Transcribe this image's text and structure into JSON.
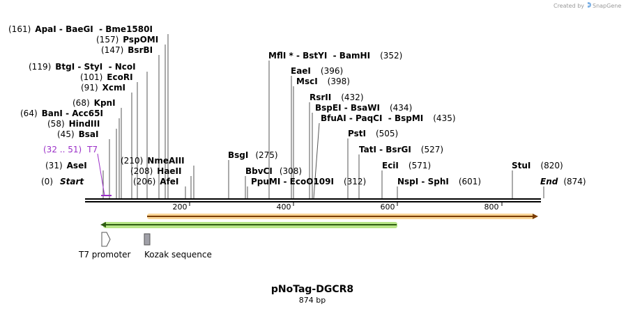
{
  "credit": "Created by",
  "brand": "SnapGene",
  "brand_icon": "snapgene-logo-icon",
  "map": {
    "title": "pNoTag-DGCR8",
    "length_label": "874 bp",
    "length": 874,
    "start_num": "(0)",
    "start_label": "Start",
    "end_label": "End",
    "end_num": "(874)",
    "ticks": [
      "200",
      "400",
      "600",
      "800"
    ],
    "colors": {
      "backbone": "#000000",
      "primer": "#9b30c8",
      "orange": "#f5a623",
      "green": "#66cc33",
      "kozak": "#a0a0a8"
    }
  },
  "sites": [
    {
      "id": "apai",
      "num": "(161)",
      "enz": "ApaI",
      "rest": " - BaeGI  - Bme1580I"
    },
    {
      "id": "pspomi",
      "num": "(157)",
      "enz": "PspOMI",
      "rest": ""
    },
    {
      "id": "bsrbi",
      "num": "(147)",
      "enz": "BsrBI",
      "rest": ""
    },
    {
      "id": "btgi",
      "num": "(119)",
      "enz": "BtgI",
      "rest": " - StyI  - NcoI"
    },
    {
      "id": "ecori",
      "num": "(101)",
      "enz": "EcoRI",
      "rest": ""
    },
    {
      "id": "xcmi",
      "num": "(91)",
      "enz": "XcmI",
      "rest": ""
    },
    {
      "id": "kpni",
      "num": "(68)",
      "enz": "KpnI",
      "rest": ""
    },
    {
      "id": "bani",
      "num": "(64)",
      "enz": "BanI",
      "rest": " - Acc65I"
    },
    {
      "id": "hindiii",
      "num": "(58)",
      "enz": "HindIII",
      "rest": ""
    },
    {
      "id": "bsai",
      "num": "(45)",
      "enz": "BsaI",
      "rest": ""
    },
    {
      "id": "asei",
      "num": "(31)",
      "enz": "AseI",
      "rest": ""
    },
    {
      "id": "nmeaiii",
      "num": "(210)",
      "enz": "NmeAIII",
      "rest": ""
    },
    {
      "id": "haeii",
      "num": "(208)",
      "enz": "HaeII",
      "rest": ""
    },
    {
      "id": "afei",
      "num": "(206)",
      "enz": "AfeI",
      "rest": ""
    },
    {
      "id": "bsgi",
      "num": "(275)",
      "enz": "BsgI",
      "rest": ""
    },
    {
      "id": "bbvci",
      "num": "(308)",
      "enz": "BbvCI",
      "rest": ""
    },
    {
      "id": "ppumi",
      "num": "(312)",
      "enz": "PpuMI",
      "rest": " - EcoO109I"
    },
    {
      "id": "mfli",
      "num": "(352)",
      "enz": "MflI *",
      "rest": " - BstYI  - BamHI"
    },
    {
      "id": "eaei",
      "num": "(396)",
      "enz": "EaeI",
      "rest": ""
    },
    {
      "id": "msci",
      "num": "(398)",
      "enz": "MscI",
      "rest": ""
    },
    {
      "id": "rsrii",
      "num": "(432)",
      "enz": "RsrII",
      "rest": ""
    },
    {
      "id": "bspei",
      "num": "(434)",
      "enz": "BspEI",
      "rest": " - BsaWI"
    },
    {
      "id": "bfuai",
      "num": "(435)",
      "enz": "BfuAI",
      "rest": " - PaqCI  - BspMI"
    },
    {
      "id": "psti",
      "num": "(505)",
      "enz": "PstI",
      "rest": ""
    },
    {
      "id": "tati",
      "num": "(527)",
      "enz": "TatI",
      "rest": " - BsrGI"
    },
    {
      "id": "ecii",
      "num": "(571)",
      "enz": "EciI",
      "rest": ""
    },
    {
      "id": "nspi",
      "num": "(601)",
      "enz": "NspI",
      "rest": " - SphI"
    },
    {
      "id": "stui",
      "num": "(820)",
      "enz": "StuI",
      "rest": ""
    }
  ],
  "primer": {
    "range": "(32 .. 51)",
    "name": "T7"
  },
  "legend": [
    {
      "icon": "promoter-arrow-icon",
      "label": "T7 promoter"
    },
    {
      "icon": "kozak-box-icon",
      "label": "Kozak sequence"
    }
  ]
}
